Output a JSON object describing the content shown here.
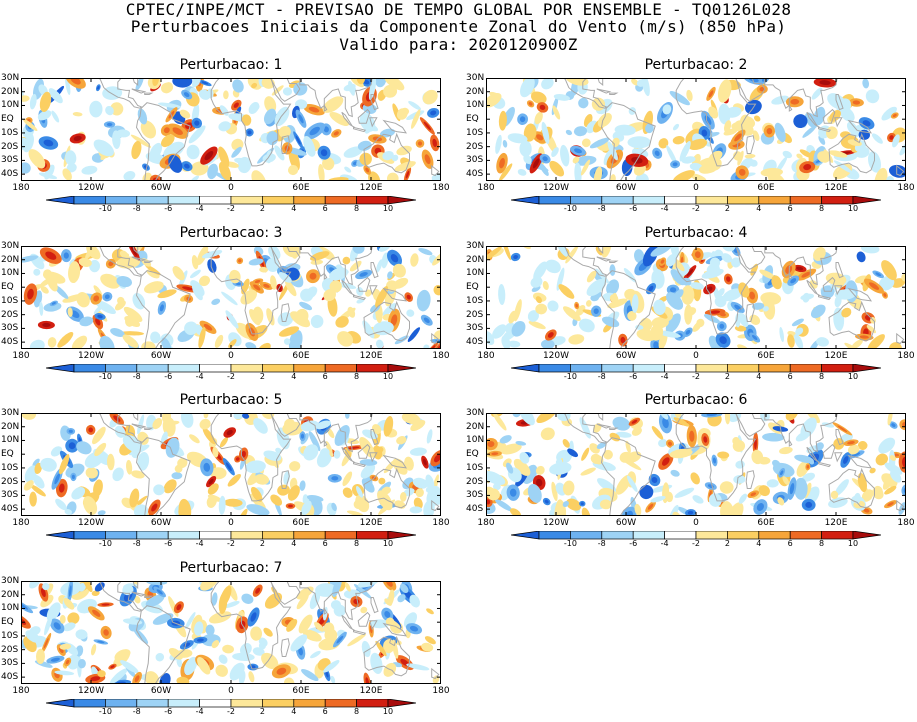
{
  "header": {
    "line1": "CPTEC/INPE/MCT - PREVISAO DE TEMPO GLOBAL POR ENSEMBLE - TQ0126L028",
    "line2": "Perturbacoes Iniciais da Componente Zonal do Vento (m/s) (850 hPa)",
    "line3": "Valido para: 2020120900Z"
  },
  "map": {
    "lat_labels": [
      "30N",
      "20N",
      "10N",
      "EQ",
      "10S",
      "20S",
      "30S",
      "40S"
    ],
    "lon_labels": [
      "180",
      "120W",
      "60W",
      "0",
      "60E",
      "120E",
      "180"
    ],
    "projection": "cylindrical equidistant, 180W-180E, 45S-30N",
    "land_outline_color": "#a9a9a9"
  },
  "colorbar": {
    "labels": [
      "-10",
      "-8",
      "-6",
      "-4",
      "-2",
      "2",
      "4",
      "6",
      "8",
      "10"
    ],
    "colors": [
      "#1c5fd6",
      "#3a8ae6",
      "#6eb2f0",
      "#9ed3f5",
      "#c8eefb",
      "#ffffff",
      "#fde89a",
      "#fbcf62",
      "#f6a53a",
      "#ee6a24",
      "#d21f11",
      "#a80c0c"
    ]
  },
  "panels": [
    {
      "title": "Perturbacao: 1"
    },
    {
      "title": "Perturbacao: 2"
    },
    {
      "title": "Perturbacao: 3"
    },
    {
      "title": "Perturbacao: 4"
    },
    {
      "title": "Perturbacao: 5"
    },
    {
      "title": "Perturbacao: 6"
    },
    {
      "title": "Perturbacao: 7"
    }
  ]
}
